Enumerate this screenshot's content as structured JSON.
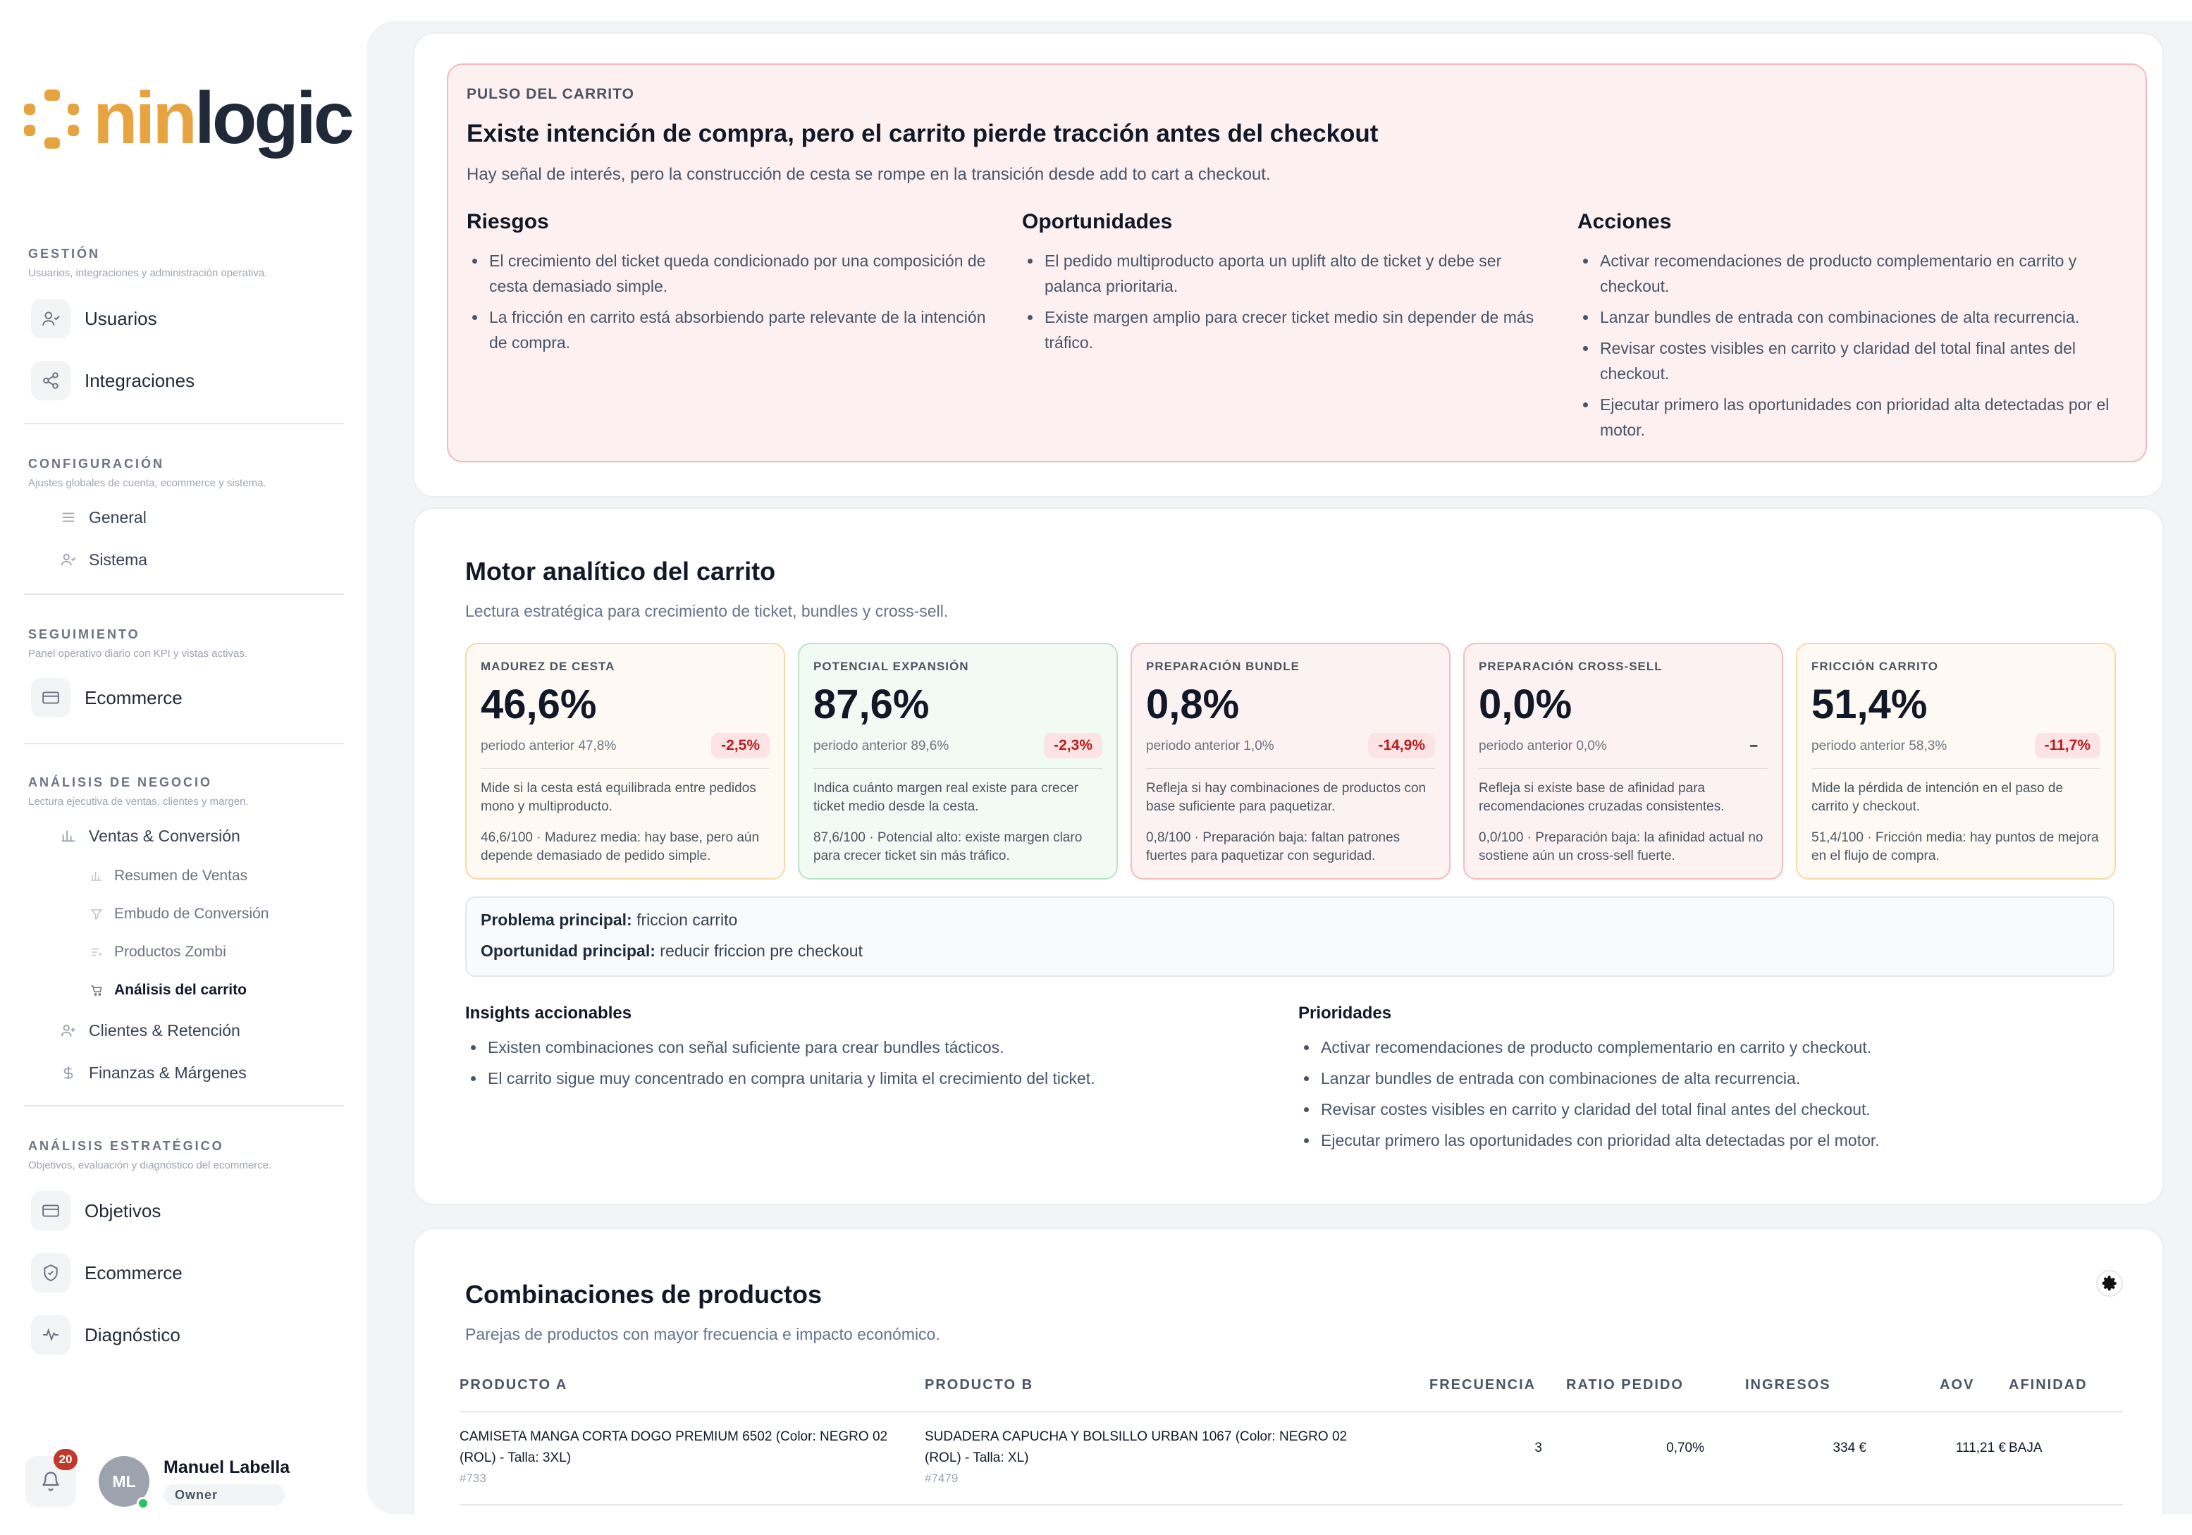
{
  "brand": {
    "prefix": "nin",
    "suffix": "logic"
  },
  "sidebar": {
    "gestion": {
      "title": "GESTIÓN",
      "subtitle": "Usuarios, integraciones y administración operativa.",
      "items": [
        "Usuarios",
        "Integraciones"
      ]
    },
    "configuracion": {
      "title": "CONFIGURACIÓN",
      "subtitle": "Ajustes globales de cuenta, ecommerce y sistema.",
      "items": [
        "General",
        "Sistema"
      ]
    },
    "seguimiento": {
      "title": "SEGUIMIENTO",
      "subtitle": "Panel operativo diario con KPI y vistas activas.",
      "items": [
        "Ecommerce"
      ]
    },
    "negocio": {
      "title": "ANÁLISIS DE NEGOCIO",
      "subtitle": "Lectura ejecutiva de ventas, clientes y margen.",
      "ventas": "Ventas & Conversión",
      "sub_items": [
        "Resumen de Ventas",
        "Embudo de Conversión",
        "Productos Zombi",
        "Análisis del carrito"
      ],
      "clientes": "Clientes & Retención",
      "finanzas": "Finanzas & Márgenes"
    },
    "estrategico": {
      "title": "ANÁLISIS ESTRATÉGICO",
      "subtitle": "Objetivos, evaluación y diagnóstico del ecommerce.",
      "items": [
        "Objetivos",
        "Ecommerce",
        "Diagnóstico"
      ]
    }
  },
  "user": {
    "initials": "ML",
    "name": "Manuel Labella",
    "role": "Owner",
    "notifications": "20"
  },
  "pulse": {
    "eyebrow": "PULSO DEL CARRITO",
    "title": "Existe intención de compra, pero el carrito pierde tracción antes del checkout",
    "description": "Hay señal de interés, pero la construcción de cesta se rompe en la transición desde add to cart a checkout.",
    "riesgos": {
      "title": "Riesgos",
      "items": [
        "El crecimiento del ticket queda condicionado por una composición de cesta demasiado simple.",
        "La fricción en carrito está absorbiendo parte relevante de la intención de compra."
      ]
    },
    "oportunidades": {
      "title": "Oportunidades",
      "items": [
        "El pedido multiproducto aporta un uplift alto de ticket y debe ser palanca prioritaria.",
        "Existe margen amplio para crecer ticket medio sin depender de más tráfico."
      ]
    },
    "acciones": {
      "title": "Acciones",
      "items": [
        "Activar recomendaciones de producto complementario en carrito y checkout.",
        "Lanzar bundles de entrada con combinaciones de alta recurrencia.",
        "Revisar costes visibles en carrito y claridad del total final antes del checkout.",
        "Ejecutar primero las oportunidades con prioridad alta detectadas por el motor."
      ]
    }
  },
  "motor": {
    "title": "Motor analítico del carrito",
    "subtitle": "Lectura estratégica para crecimiento de ticket, bundles y cross-sell.",
    "kpis": [
      {
        "label": "MADUREZ DE CESTA",
        "value": "46,6%",
        "previous": "periodo anterior 47,8%",
        "delta": "-2,5%",
        "description": "Mide si la cesta está equilibrada entre pedidos mono y multiproducto.",
        "note": "46,6/100 · Madurez media: hay base, pero aún depende demasiado de pedido simple.",
        "color": "#f5d9a6"
      },
      {
        "label": "POTENCIAL EXPANSIÓN",
        "value": "87,6%",
        "previous": "periodo anterior 89,6%",
        "delta": "-2,3%",
        "description": "Indica cuánto margen real existe para crecer ticket medio desde la cesta.",
        "note": "87,6/100 · Potencial alto: existe margen claro para crecer ticket sin más tráfico.",
        "color": "#b9e3c6"
      },
      {
        "label": "PREPARACIÓN BUNDLE",
        "value": "0,8%",
        "previous": "periodo anterior 1,0%",
        "delta": "-14,9%",
        "description": "Refleja si hay combinaciones de productos con base suficiente para paquetizar.",
        "note": "0,8/100 · Preparación baja: faltan patrones fuertes para paquetizar con seguridad.",
        "color": "#f2bcc0"
      },
      {
        "label": "PREPARACIÓN CROSS-SELL",
        "value": "0,0%",
        "previous": "periodo anterior 0,0%",
        "delta": "–",
        "description": "Refleja si existe base de afinidad para recomendaciones cruzadas consistentes.",
        "note": "0,0/100 · Preparación baja: la afinidad actual no sostiene aún un cross-sell fuerte.",
        "color": "#f2bcc0"
      },
      {
        "label": "FRICCIÓN CARRITO",
        "value": "51,4%",
        "previous": "periodo anterior 58,3%",
        "delta": "-11,7%",
        "description": "Mide la pérdida de intención en el paso de carrito y checkout.",
        "note": "51,4/100 · Fricción media: hay puntos de mejora en el flujo de compra.",
        "color": "#f5d9a6"
      }
    ],
    "problem_label": "Problema principal:",
    "problem_value": "friccion carrito",
    "opportunity_label": "Oportunidad principal:",
    "opportunity_value": "reducir friccion pre checkout",
    "insights": {
      "title": "Insights accionables",
      "items": [
        "Existen combinaciones con señal suficiente para crear bundles tácticos.",
        "El carrito sigue muy concentrado en compra unitaria y limita el crecimiento del ticket."
      ]
    },
    "priorities": {
      "title": "Prioridades",
      "items": [
        "Activar recomendaciones de producto complementario en carrito y checkout.",
        "Lanzar bundles de entrada con combinaciones de alta recurrencia.",
        "Revisar costes visibles en carrito y claridad del total final antes del checkout.",
        "Ejecutar primero las oportunidades con prioridad alta detectadas por el motor."
      ]
    }
  },
  "combos": {
    "title": "Combinaciones de productos",
    "subtitle": "Parejas de productos con mayor frecuencia e impacto económico.",
    "columns": [
      "PRODUCTO A",
      "PRODUCTO B",
      "FRECUENCIA",
      "RATIO PEDIDO",
      "INGRESOS",
      "AOV",
      "AFINIDAD"
    ],
    "rows": [
      {
        "product_a": "CAMISETA MANGA CORTA DOGO PREMIUM 6502 (Color: NEGRO 02 (ROL) - Talla: 3XL)",
        "id_a": "#733",
        "product_b": "SUDADERA CAPUCHA Y BOLSILLO URBAN 1067 (Color: NEGRO 02 (ROL) - Talla: XL)",
        "id_b": "#7479",
        "frecuencia": "3",
        "ratio": "0,70%",
        "ingresos": "334 €",
        "aov": "111,21 €",
        "afinidad": "BAJA"
      }
    ]
  }
}
